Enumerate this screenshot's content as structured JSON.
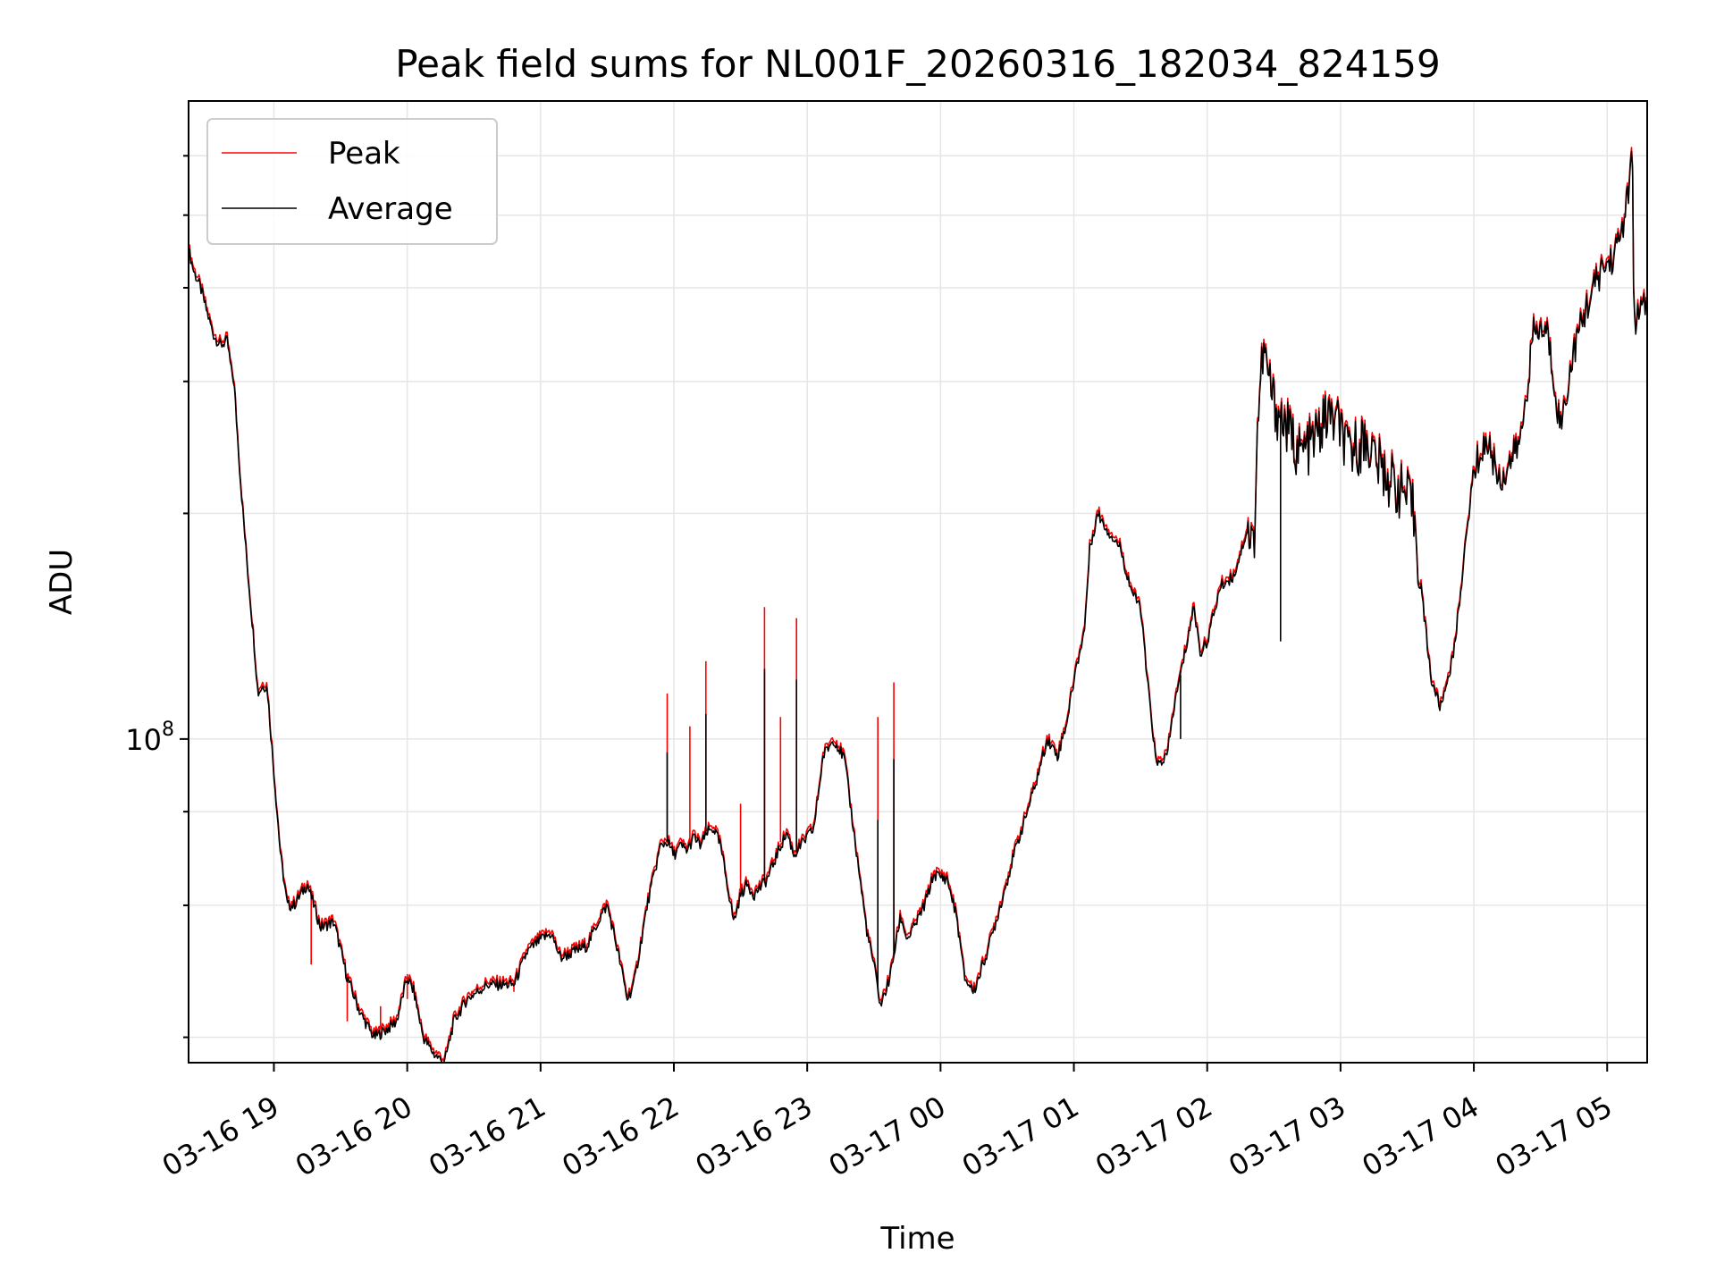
{
  "chart_data": {
    "type": "line",
    "title": "Peak field sums for NL001F_20260316_182034_824159",
    "xlabel": "Time",
    "ylabel": "ADU",
    "yscale": "log",
    "ylim": [
      37000000,
      710000000
    ],
    "xlim_hours": [
      -0.64,
      10.3
    ],
    "x_ticks": [
      {
        "h": 0,
        "label": "03-16 19"
      },
      {
        "h": 1,
        "label": "03-16 20"
      },
      {
        "h": 2,
        "label": "03-16 21"
      },
      {
        "h": 3,
        "label": "03-16 22"
      },
      {
        "h": 4,
        "label": "03-16 23"
      },
      {
        "h": 5,
        "label": "03-17 00"
      },
      {
        "h": 6,
        "label": "03-17 01"
      },
      {
        "h": 7,
        "label": "03-17 02"
      },
      {
        "h": 8,
        "label": "03-17 03"
      },
      {
        "h": 9,
        "label": "03-17 04"
      },
      {
        "h": 10,
        "label": "03-17 05"
      }
    ],
    "y_major_ticks": [
      {
        "value": 100000000,
        "base": "10",
        "exp": "8"
      }
    ],
    "y_minor_ticks": [
      40000000,
      60000000,
      80000000,
      200000000,
      300000000,
      400000000,
      500000000,
      600000000
    ],
    "legend": {
      "position": "top-left",
      "entries": [
        "Peak",
        "Average"
      ]
    },
    "series": [
      {
        "name": "Peak",
        "color": "#ff0000",
        "offset_factor": 1.012,
        "spikes": [
          [
            2.95,
            115000000
          ],
          [
            3.12,
            104000000
          ],
          [
            3.24,
            127000000
          ],
          [
            3.5,
            82000000
          ],
          [
            3.68,
            150000000
          ],
          [
            3.8,
            107000000
          ],
          [
            3.92,
            145000000
          ],
          [
            4.53,
            107000000
          ],
          [
            4.65,
            119000000
          ],
          [
            1.8,
            46000000
          ],
          [
            1.0,
            45000000
          ],
          [
            0.55,
            42000000
          ],
          [
            0.8,
            44000000
          ],
          [
            0.28,
            50000000
          ]
        ]
      },
      {
        "name": "Average",
        "color": "#000000",
        "offset_factor": 1.0,
        "spikes": [
          [
            2.95,
            96000000
          ],
          [
            3.24,
            108000000
          ],
          [
            3.68,
            124000000
          ],
          [
            3.92,
            120000000
          ],
          [
            4.53,
            78000000
          ],
          [
            4.65,
            94000000
          ],
          [
            6.8,
            100000000
          ],
          [
            7.55,
            135000000
          ]
        ]
      }
    ],
    "anchors_hours_adu": [
      [
        -0.64,
        450000000
      ],
      [
        -0.6,
        420000000
      ],
      [
        -0.55,
        400000000
      ],
      [
        -0.5,
        370000000
      ],
      [
        -0.45,
        345000000
      ],
      [
        -0.4,
        335000000
      ],
      [
        -0.35,
        340000000
      ],
      [
        -0.32,
        310000000
      ],
      [
        -0.3,
        300000000
      ],
      [
        -0.25,
        220000000
      ],
      [
        -0.2,
        170000000
      ],
      [
        -0.15,
        135000000
      ],
      [
        -0.12,
        115000000
      ],
      [
        -0.08,
        118000000
      ],
      [
        -0.05,
        117000000
      ],
      [
        0,
        90000000
      ],
      [
        0.05,
        70000000
      ],
      [
        0.1,
        60000000
      ],
      [
        0.15,
        60000000
      ],
      [
        0.25,
        64000000
      ],
      [
        0.3,
        60000000
      ],
      [
        0.35,
        56000000
      ],
      [
        0.45,
        57000000
      ],
      [
        0.55,
        48000000
      ],
      [
        0.65,
        43000000
      ],
      [
        0.75,
        40000000
      ],
      [
        0.85,
        41000000
      ],
      [
        0.92,
        42000000
      ],
      [
        1.0,
        48000000
      ],
      [
        1.05,
        46000000
      ],
      [
        1.12,
        40000000
      ],
      [
        1.2,
        38000000
      ],
      [
        1.28,
        37000000
      ],
      [
        1.35,
        42000000
      ],
      [
        1.45,
        45000000
      ],
      [
        1.6,
        47000000
      ],
      [
        1.7,
        47000000
      ],
      [
        1.8,
        47000000
      ],
      [
        1.9,
        52000000
      ],
      [
        2.0,
        54000000
      ],
      [
        2.08,
        55000000
      ],
      [
        2.15,
        51000000
      ],
      [
        2.25,
        52000000
      ],
      [
        2.35,
        53000000
      ],
      [
        2.45,
        58000000
      ],
      [
        2.5,
        60000000
      ],
      [
        2.55,
        55000000
      ],
      [
        2.6,
        50000000
      ],
      [
        2.65,
        45000000
      ],
      [
        2.7,
        47000000
      ],
      [
        2.8,
        60000000
      ],
      [
        2.9,
        72000000
      ],
      [
        2.95,
        73000000
      ],
      [
        3.0,
        70000000
      ],
      [
        3.05,
        72000000
      ],
      [
        3.1,
        71000000
      ],
      [
        3.15,
        74000000
      ],
      [
        3.2,
        72000000
      ],
      [
        3.25,
        75000000
      ],
      [
        3.3,
        76000000
      ],
      [
        3.35,
        72000000
      ],
      [
        3.45,
        57000000
      ],
      [
        3.5,
        62000000
      ],
      [
        3.55,
        64000000
      ],
      [
        3.6,
        62000000
      ],
      [
        3.7,
        65000000
      ],
      [
        3.8,
        72000000
      ],
      [
        3.85,
        75000000
      ],
      [
        3.9,
        70000000
      ],
      [
        3.95,
        72000000
      ],
      [
        4.05,
        76000000
      ],
      [
        4.12,
        95000000
      ],
      [
        4.2,
        100000000
      ],
      [
        4.28,
        94000000
      ],
      [
        4.35,
        75000000
      ],
      [
        4.45,
        55000000
      ],
      [
        4.5,
        50000000
      ],
      [
        4.55,
        44000000
      ],
      [
        4.62,
        48000000
      ],
      [
        4.7,
        58000000
      ],
      [
        4.75,
        54000000
      ],
      [
        4.8,
        56000000
      ],
      [
        4.88,
        60000000
      ],
      [
        4.95,
        66000000
      ],
      [
        5.05,
        65000000
      ],
      [
        5.12,
        58000000
      ],
      [
        5.18,
        48000000
      ],
      [
        5.25,
        46000000
      ],
      [
        5.35,
        52000000
      ],
      [
        5.45,
        60000000
      ],
      [
        5.55,
        70000000
      ],
      [
        5.65,
        80000000
      ],
      [
        5.72,
        88000000
      ],
      [
        5.8,
        100000000
      ],
      [
        5.88,
        95000000
      ],
      [
        5.95,
        106000000
      ],
      [
        6.0,
        120000000
      ],
      [
        6.08,
        140000000
      ],
      [
        6.12,
        180000000
      ],
      [
        6.18,
        200000000
      ],
      [
        6.25,
        190000000
      ],
      [
        6.35,
        180000000
      ],
      [
        6.4,
        165000000
      ],
      [
        6.45,
        155000000
      ],
      [
        6.5,
        150000000
      ],
      [
        6.55,
        120000000
      ],
      [
        6.62,
        92000000
      ],
      [
        6.7,
        95000000
      ],
      [
        6.75,
        110000000
      ],
      [
        6.85,
        135000000
      ],
      [
        6.9,
        150000000
      ],
      [
        6.95,
        130000000
      ],
      [
        7.0,
        135000000
      ],
      [
        7.1,
        160000000
      ],
      [
        7.2,
        165000000
      ],
      [
        7.3,
        190000000
      ],
      [
        7.35,
        180000000
      ],
      [
        7.38,
        270000000
      ],
      [
        7.42,
        330000000
      ],
      [
        7.5,
        280000000
      ],
      [
        7.6,
        260000000
      ],
      [
        7.7,
        240000000
      ],
      [
        7.8,
        250000000
      ],
      [
        7.9,
        270000000
      ],
      [
        8.0,
        260000000
      ],
      [
        8.05,
        240000000
      ],
      [
        8.1,
        245000000
      ],
      [
        8.2,
        250000000
      ],
      [
        8.3,
        230000000
      ],
      [
        8.4,
        220000000
      ],
      [
        8.5,
        210000000
      ],
      [
        8.55,
        200000000
      ],
      [
        8.62,
        150000000
      ],
      [
        8.68,
        120000000
      ],
      [
        8.75,
        110000000
      ],
      [
        8.85,
        130000000
      ],
      [
        9.0,
        230000000
      ],
      [
        9.1,
        250000000
      ],
      [
        9.2,
        220000000
      ],
      [
        9.25,
        230000000
      ],
      [
        9.35,
        250000000
      ],
      [
        9.45,
        350000000
      ],
      [
        9.55,
        350000000
      ],
      [
        9.65,
        260000000
      ],
      [
        9.75,
        330000000
      ],
      [
        9.85,
        380000000
      ],
      [
        9.95,
        420000000
      ],
      [
        10.05,
        440000000
      ],
      [
        10.1,
        470000000
      ],
      [
        10.15,
        520000000
      ],
      [
        10.19,
        600000000
      ],
      [
        10.2,
        360000000
      ],
      [
        10.3,
        380000000
      ]
    ]
  }
}
